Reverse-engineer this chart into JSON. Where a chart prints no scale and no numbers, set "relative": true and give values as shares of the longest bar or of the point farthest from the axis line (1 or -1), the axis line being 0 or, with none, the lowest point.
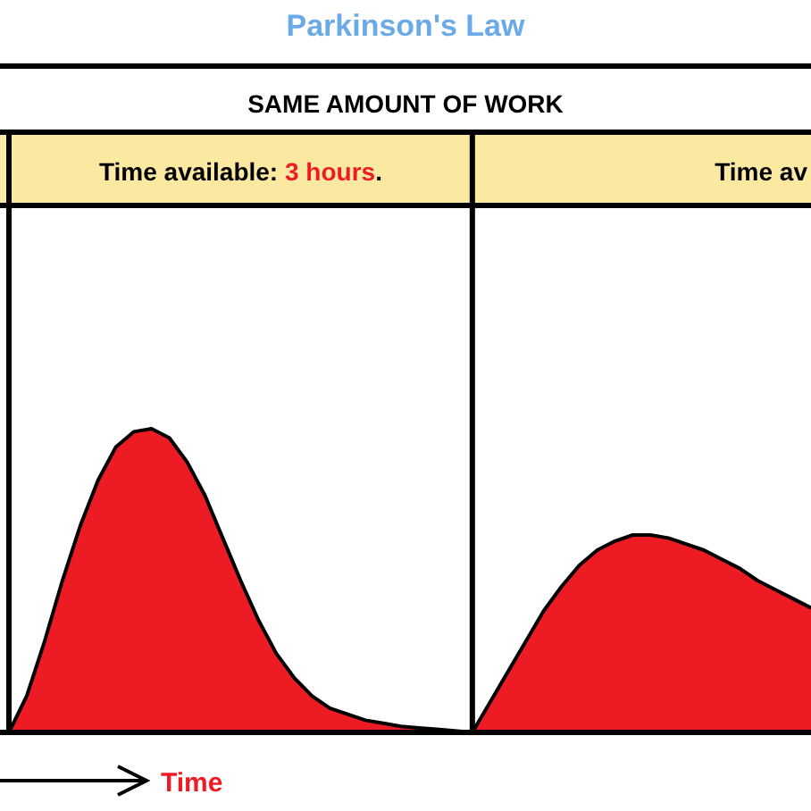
{
  "chart_data": {
    "type": "area",
    "title": "Parkinson's Law",
    "xlabel": "Time",
    "relative": true,
    "annotations": [
      "SAME AMOUNT OF WORK",
      "Time available: 3 hours.",
      "Time av"
    ],
    "categories": [
      null,
      null,
      null,
      null,
      null,
      null,
      null,
      null,
      null,
      null,
      null,
      null,
      null,
      null,
      null,
      null,
      null,
      null,
      null,
      null,
      null,
      null,
      null,
      null,
      null,
      null,
      null,
      null,
      null,
      null,
      null,
      null,
      null,
      null,
      null,
      null,
      null,
      null,
      null,
      null,
      null,
      null,
      null,
      null,
      null,
      null
    ],
    "series": [
      {
        "color": "#ed1c24",
        "values": [
          0,
          0.12,
          0.3,
          0.5,
          0.68,
          0.83,
          0.94,
          0.99,
          1,
          0.97,
          0.89,
          0.78,
          0.64,
          0.5,
          0.37,
          0.26,
          0.18,
          0.12,
          0.08,
          0.06,
          0.04,
          0.03,
          0.02,
          0.015,
          0.01,
          0.005,
          0,
          0.1,
          0.2,
          0.3,
          0.4,
          0.48,
          0.55,
          0.6,
          0.63,
          0.65,
          0.65,
          0.64,
          0.62,
          0.6,
          0.57,
          0.54,
          0.5,
          0.47,
          0.44,
          0.41
        ]
      }
    ]
  }
}
